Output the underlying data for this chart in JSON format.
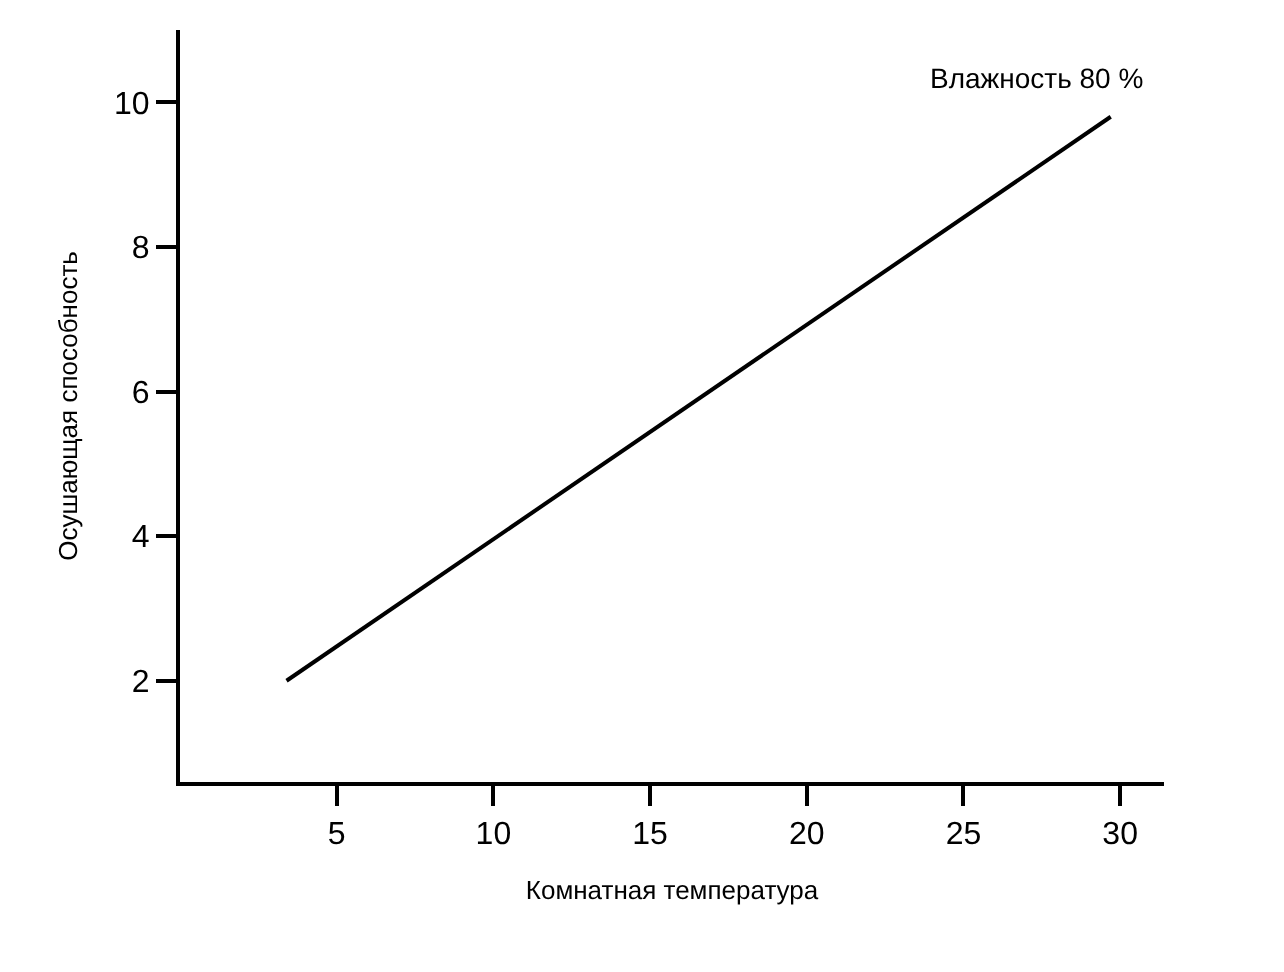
{
  "chart_data": {
    "type": "line",
    "xlabel": "Комнатная температура",
    "ylabel": "Осушающая способность",
    "x": [
      3.4,
      29.7
    ],
    "series": [
      {
        "color": "#000000",
        "values": [
          2.0,
          9.8
        ]
      }
    ],
    "xlim": [
      0,
      31.4
    ],
    "xticks": [
      5,
      10,
      15,
      20,
      25,
      30
    ],
    "ylim": [
      0.6,
      11
    ],
    "yticks": [
      2,
      4,
      6,
      8,
      10
    ],
    "annotations": [
      "Влажность 80 %"
    ],
    "marker": "none",
    "line_style": "solid"
  }
}
